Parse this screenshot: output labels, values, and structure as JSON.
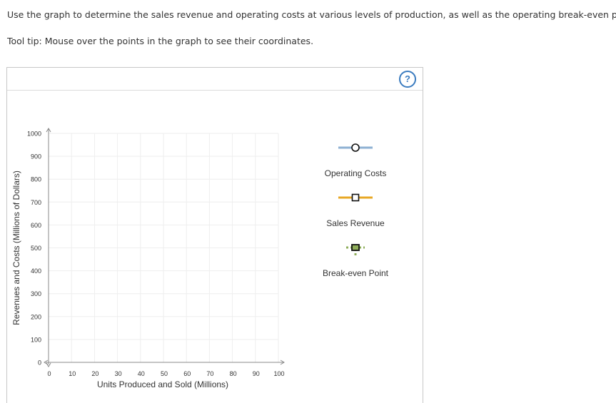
{
  "instructions": "Use the graph to determine the sales revenue and operating costs at various levels of production, as well as the operating break-even point.",
  "tooltip_hint": "Tool tip: Mouse over the points in the graph to see their coordinates.",
  "help_label": "?",
  "legend": {
    "operating_costs": "Operating Costs",
    "sales_revenue": "Sales Revenue",
    "break_even": "Break-even Point"
  },
  "colors": {
    "operating_costs": "#8eb1d3",
    "sales_revenue": "#e8a825",
    "break_even": "#8fae5a",
    "grid": "#eeeeee",
    "help": "#3a7bbf"
  },
  "chart_data": {
    "type": "line",
    "title": "",
    "xlabel": "Units Produced and Sold (Millions)",
    "ylabel": "Revenues and Costs (Millions of Dollars)",
    "xlim": [
      0,
      100
    ],
    "ylim": [
      0,
      1000
    ],
    "x_ticks": [
      0,
      10,
      20,
      30,
      40,
      50,
      60,
      70,
      80,
      90,
      100
    ],
    "y_ticks": [
      0,
      100,
      200,
      300,
      400,
      500,
      600,
      700,
      800,
      900,
      1000
    ],
    "grid": true,
    "series": [
      {
        "name": "Operating Costs",
        "values": []
      },
      {
        "name": "Sales Revenue",
        "values": []
      },
      {
        "name": "Break-even Point",
        "values": []
      }
    ]
  }
}
